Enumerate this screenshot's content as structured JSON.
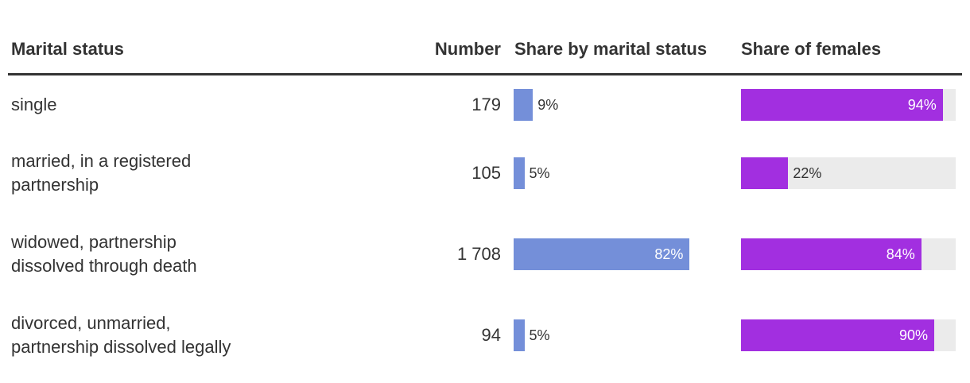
{
  "table": {
    "columns": [
      "Marital status",
      "Number",
      "Share by marital status",
      "Share of females"
    ],
    "rows": [
      {
        "label": [
          "single"
        ],
        "number": 179,
        "share": {
          "value": 9,
          "label": "9%"
        },
        "female_share": {
          "value": 94,
          "label": "94%"
        }
      },
      {
        "label": [
          "married, in a registered",
          "partnership"
        ],
        "number": 105,
        "share": {
          "value": 5,
          "label": "5%"
        },
        "female_share": {
          "value": 22,
          "label": "22%"
        }
      },
      {
        "label": [
          "widowed, partnership",
          "dissolved through death"
        ],
        "number": {
          "value": 1708,
          "label": "1 708"
        },
        "share": {
          "value": 82,
          "label": "82%"
        },
        "female_share": {
          "value": 84,
          "label": "84%"
        }
      },
      {
        "label": [
          "divorced, unmarried,",
          "partnership dissolved legally"
        ],
        "number": 94,
        "share": {
          "value": 5,
          "label": "5%"
        },
        "female_share": {
          "value": 90,
          "label": "90%"
        }
      }
    ]
  }
}
